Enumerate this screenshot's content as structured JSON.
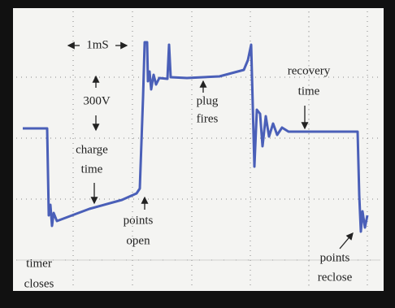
{
  "annotations": {
    "time_scale": "1mS",
    "voltage_scale": "300V",
    "charge_time": [
      "charge",
      "time"
    ],
    "plug_fires": [
      "plug",
      "fires"
    ],
    "recovery_time": [
      "recovery",
      "time"
    ],
    "points_open": [
      "points",
      "open"
    ],
    "timer_closes": [
      "timer",
      "closes"
    ],
    "points_reclose": [
      "points",
      "reclose"
    ]
  }
}
